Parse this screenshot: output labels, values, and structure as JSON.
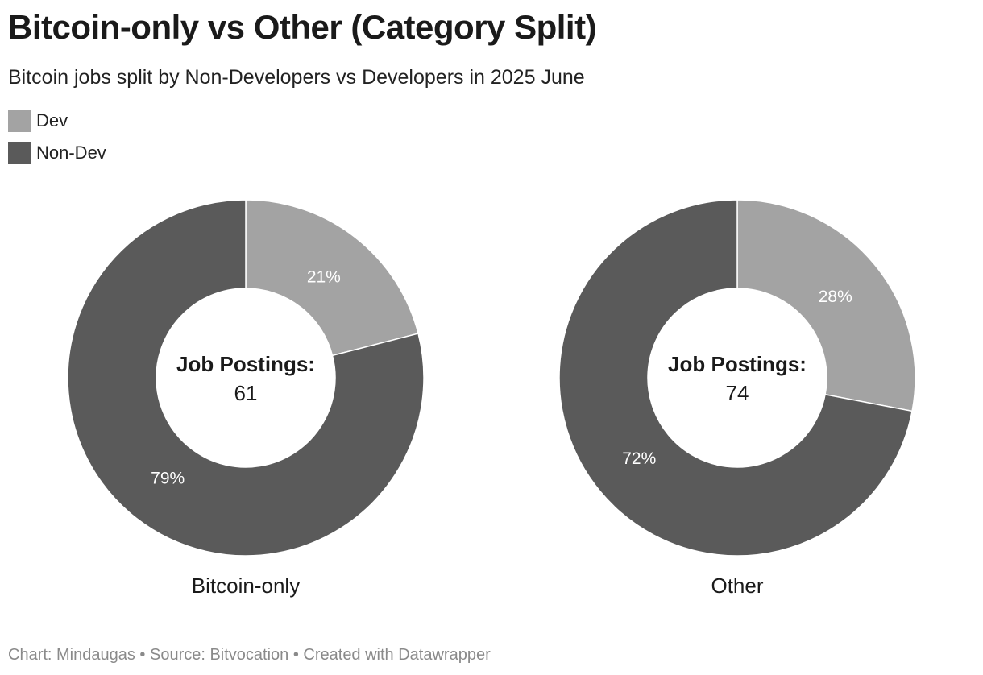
{
  "header": {
    "title": "Bitcoin-only vs Other (Category Split)",
    "subtitle": "Bitcoin jobs split by Non-Developers vs Developers in 2025 June"
  },
  "legend": [
    {
      "label": "Dev",
      "color": "#a3a3a3"
    },
    {
      "label": "Non-Dev",
      "color": "#5a5a5a"
    }
  ],
  "chart_data": {
    "type": "pie",
    "series_names": [
      "Dev",
      "Non-Dev"
    ],
    "colors": {
      "Dev": "#a3a3a3",
      "Non-Dev": "#5a5a5a"
    },
    "charts": [
      {
        "label": "Bitcoin-only",
        "center_label": "Job Postings:",
        "total": 61,
        "slices": [
          {
            "name": "Dev",
            "value": 21,
            "label": "21%"
          },
          {
            "name": "Non-Dev",
            "value": 79,
            "label": "79%"
          }
        ]
      },
      {
        "label": "Other",
        "center_label": "Job Postings:",
        "total": 74,
        "slices": [
          {
            "name": "Dev",
            "value": 28,
            "label": "28%"
          },
          {
            "name": "Non-Dev",
            "value": 72,
            "label": "72%"
          }
        ]
      }
    ]
  },
  "footer": {
    "text": "Chart: Mindaugas • Source: Bitvocation • Created with Datawrapper"
  }
}
